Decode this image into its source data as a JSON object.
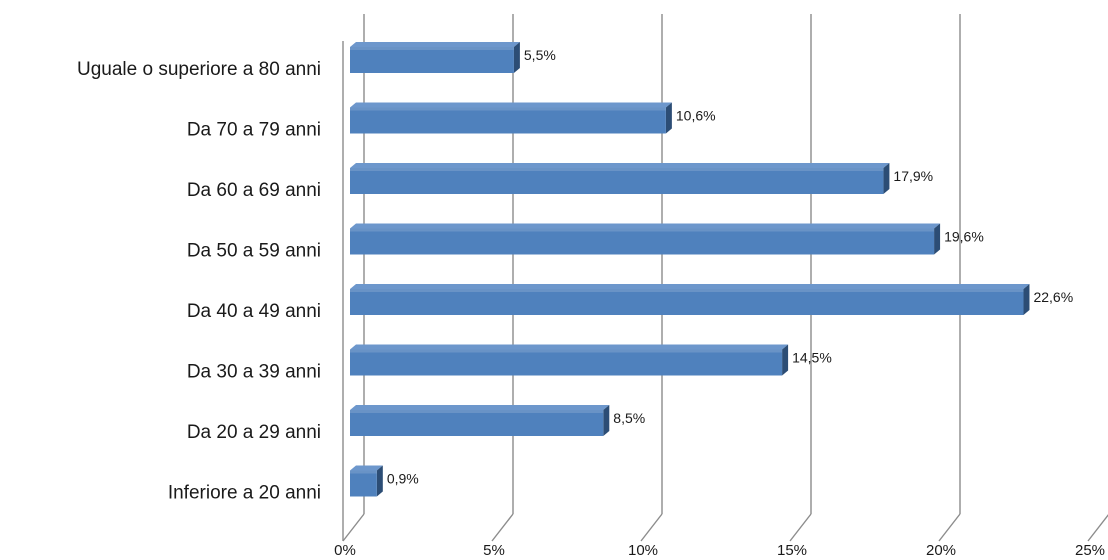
{
  "chart_data": {
    "type": "bar",
    "orientation": "horizontal",
    "style": "3d",
    "categories": [
      "Uguale o superiore a 80 anni",
      "Da 70 a 79 anni",
      "Da 60 a 69 anni",
      "Da 50 a 59 anni",
      "Da 40 a 49 anni",
      "Da 30 a 39 anni",
      "Da 20 a 29 anni",
      "Inferiore a 20 anni"
    ],
    "values": [
      5.5,
      10.6,
      17.9,
      19.6,
      22.6,
      14.5,
      8.5,
      0.9
    ],
    "value_labels": [
      "5,5%",
      "10,6%",
      "17,9%",
      "19,6%",
      "22,6%",
      "14,5%",
      "8,5%",
      "0,9%"
    ],
    "x_ticks": [
      0,
      5,
      10,
      15,
      20,
      25
    ],
    "x_tick_labels": [
      "0%",
      "5%",
      "10%",
      "15%",
      "20%",
      "25%"
    ],
    "xlim": [
      0,
      25
    ],
    "title": "",
    "xlabel": "",
    "ylabel": "",
    "grid": "vertical",
    "legend": "none",
    "colors": {
      "bar_front": "#4f81bd",
      "bar_top": "#6d97cc",
      "bar_side": "#2c4d75",
      "grid": "#8c8c8c"
    }
  }
}
